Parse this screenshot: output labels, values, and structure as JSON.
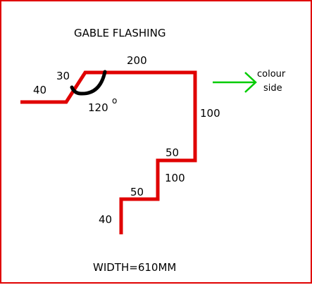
{
  "diagram": {
    "title": "GABLE FLASHING",
    "width_label": "WIDTH=610MM",
    "colour_side_line1": "colour",
    "colour_side_line2": "side",
    "dimensions": {
      "d40_left": "40",
      "d30": "30",
      "d200": "200",
      "d100_right": "100",
      "d50_upper": "50",
      "d100_mid": "100",
      "d50_lower": "50",
      "d40_bottom": "40"
    },
    "angle": {
      "value": "120",
      "unit": "o"
    }
  },
  "colors": {
    "border": "#e00000",
    "profile": "#e00000",
    "arrow": "#00cc00",
    "angle_arc": "#000000",
    "text": "#000000"
  },
  "icons": {
    "colour_side_arrow": "right-arrow-icon"
  }
}
